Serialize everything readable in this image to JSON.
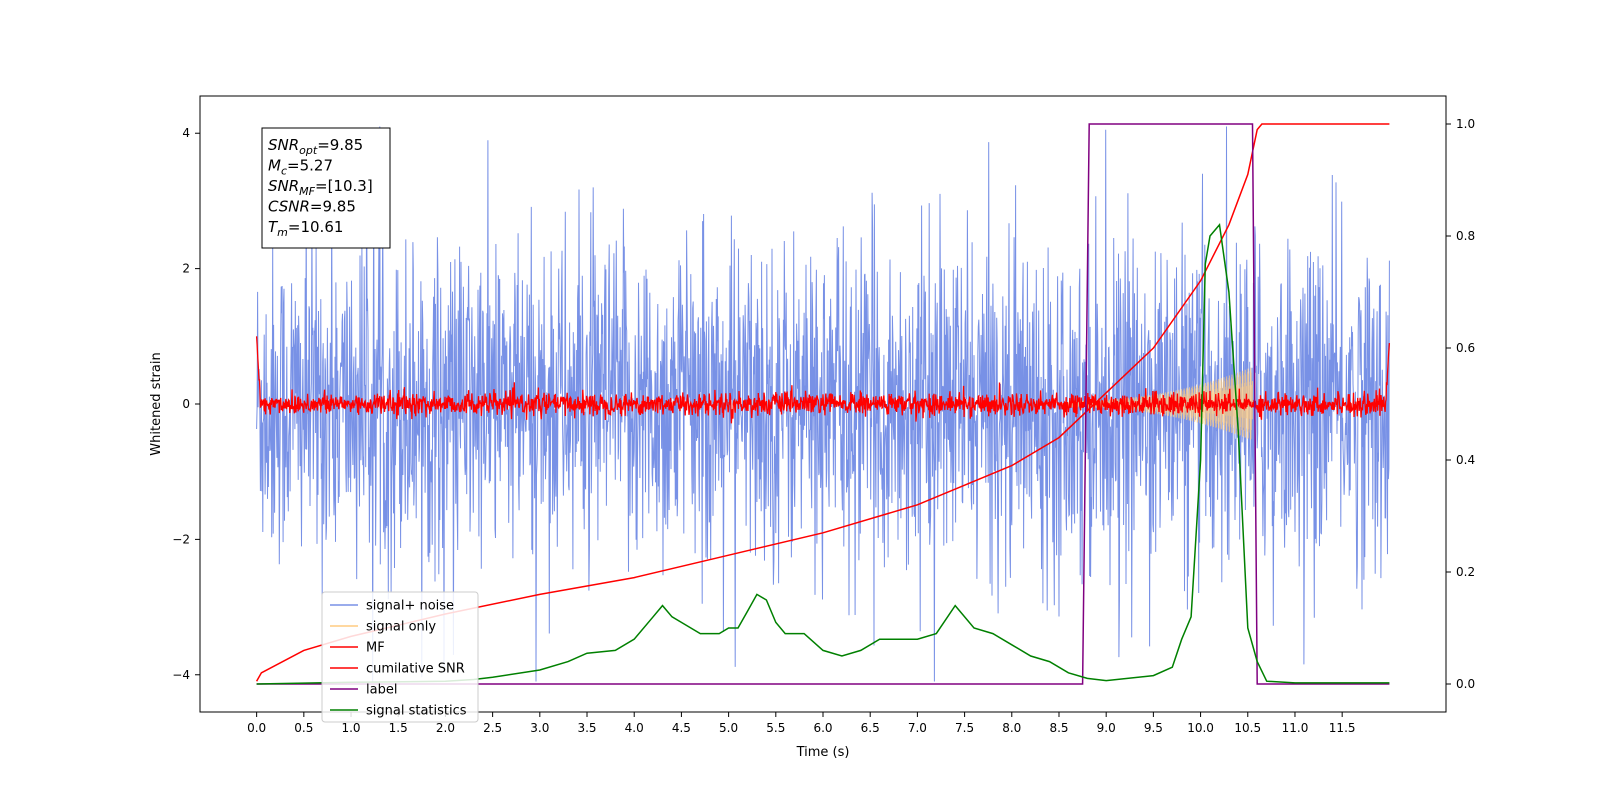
{
  "chart_data": {
    "type": "line",
    "xlabel": "Time (s)",
    "ylabel": "Whitened strain",
    "ylabel_right": "",
    "xlim": [
      -0.6,
      12.6
    ],
    "ylim": [
      -4.55,
      4.55
    ],
    "ylim_right": [
      -0.05,
      1.05
    ],
    "x_ticks": [
      0.0,
      0.5,
      1.0,
      1.5,
      2.0,
      2.5,
      3.0,
      3.5,
      4.0,
      4.5,
      5.0,
      5.5,
      6.0,
      6.5,
      7.0,
      7.5,
      8.0,
      8.5,
      9.0,
      9.5,
      10.0,
      10.5,
      11.0,
      11.5
    ],
    "x_tick_labels": [
      "0.0",
      "0.5",
      "1.0",
      "1.5",
      "2.0",
      "2.5",
      "3.0",
      "3.5",
      "4.0",
      "4.5",
      "5.0",
      "5.5",
      "6.0",
      "6.5",
      "7.0",
      "7.5",
      "8.0",
      "8.5",
      "9.0",
      "9.5",
      "10.0",
      "10.5",
      "11.0",
      "11.5"
    ],
    "y_ticks": [
      -4,
      -2,
      0,
      2,
      4
    ],
    "y_tick_labels": [
      "−4",
      "−2",
      "0",
      "2",
      "4"
    ],
    "y_ticks_right": [
      0.0,
      0.2,
      0.4,
      0.6,
      0.8,
      1.0
    ],
    "y_tick_labels_right": [
      "0.0",
      "0.2",
      "0.4",
      "0.6",
      "0.8",
      "1.0"
    ],
    "grid": false,
    "legend_placement": "lower-left",
    "annotation_lines": [
      {
        "base": "SNR",
        "sub": "opt",
        "value": "=9.85"
      },
      {
        "base": "M",
        "sub": "c",
        "value": "=5.27"
      },
      {
        "base": "SNR",
        "sub": "MF",
        "value": "=[10.3]"
      },
      {
        "base": "CSNR",
        "sub": "",
        "value": "=9.85"
      },
      {
        "base": "T",
        "sub": "m",
        "value": "=10.61"
      }
    ],
    "series": [
      {
        "name": "signal+ noise",
        "color": "#7891e6",
        "axis": "left",
        "kind": "noise_band",
        "x_range": [
          0.0,
          12.0
        ],
        "typical_amplitude": 1.7,
        "peak_max": 4.1,
        "peak_min": -4.1
      },
      {
        "name": "signal only",
        "color": "#ffcc80",
        "axis": "left",
        "kind": "chirp",
        "x_start": 8.6,
        "x_end": 10.55,
        "amplitude_start": 0.05,
        "amplitude_end": 0.55
      },
      {
        "name": "MF",
        "color": "#ff0000",
        "axis": "left",
        "kind": "noise_band",
        "x_range": [
          0.0,
          12.0
        ],
        "typical_amplitude": 0.12,
        "edge_values": [
          1.0,
          0.9
        ]
      },
      {
        "name": "cumilative SNR",
        "color": "#ff0000",
        "axis": "right",
        "x": [
          0.0,
          0.05,
          0.5,
          1.0,
          1.5,
          2.0,
          3.0,
          4.0,
          5.0,
          6.0,
          7.0,
          8.0,
          8.5,
          9.0,
          9.5,
          10.0,
          10.3,
          10.5,
          10.55,
          10.6,
          10.65,
          11.0,
          12.0
        ],
        "values": [
          0.005,
          0.02,
          0.06,
          0.085,
          0.105,
          0.125,
          0.16,
          0.19,
          0.23,
          0.27,
          0.32,
          0.39,
          0.44,
          0.52,
          0.6,
          0.72,
          0.82,
          0.91,
          0.95,
          0.99,
          1.0,
          1.0,
          1.0
        ]
      },
      {
        "name": "label",
        "color": "#800080",
        "axis": "right",
        "x": [
          0.0,
          8.75,
          8.82,
          10.55,
          10.6,
          12.0
        ],
        "values": [
          0.0,
          0.0,
          1.0,
          1.0,
          0.0,
          0.0
        ]
      },
      {
        "name": "signal statistics",
        "color": "#008000",
        "axis": "right",
        "x": [
          0.0,
          1.0,
          2.0,
          2.3,
          2.5,
          3.0,
          3.3,
          3.5,
          3.8,
          4.0,
          4.2,
          4.3,
          4.4,
          4.5,
          4.7,
          4.9,
          5.0,
          5.1,
          5.2,
          5.3,
          5.4,
          5.5,
          5.6,
          5.8,
          6.0,
          6.2,
          6.4,
          6.6,
          6.8,
          7.0,
          7.2,
          7.4,
          7.6,
          7.8,
          8.0,
          8.2,
          8.4,
          8.6,
          8.8,
          9.0,
          9.5,
          9.7,
          9.8,
          9.9,
          10.0,
          10.05,
          10.1,
          10.2,
          10.3,
          10.4,
          10.5,
          10.6,
          10.7,
          11.0,
          12.0
        ],
        "values": [
          0.0,
          0.003,
          0.005,
          0.008,
          0.012,
          0.025,
          0.04,
          0.055,
          0.06,
          0.08,
          0.12,
          0.14,
          0.12,
          0.11,
          0.09,
          0.09,
          0.1,
          0.1,
          0.13,
          0.16,
          0.15,
          0.11,
          0.09,
          0.09,
          0.06,
          0.05,
          0.06,
          0.08,
          0.08,
          0.08,
          0.09,
          0.14,
          0.1,
          0.09,
          0.07,
          0.05,
          0.04,
          0.02,
          0.01,
          0.006,
          0.015,
          0.03,
          0.08,
          0.12,
          0.4,
          0.75,
          0.8,
          0.82,
          0.7,
          0.45,
          0.1,
          0.04,
          0.005,
          0.002,
          0.002
        ]
      }
    ]
  }
}
